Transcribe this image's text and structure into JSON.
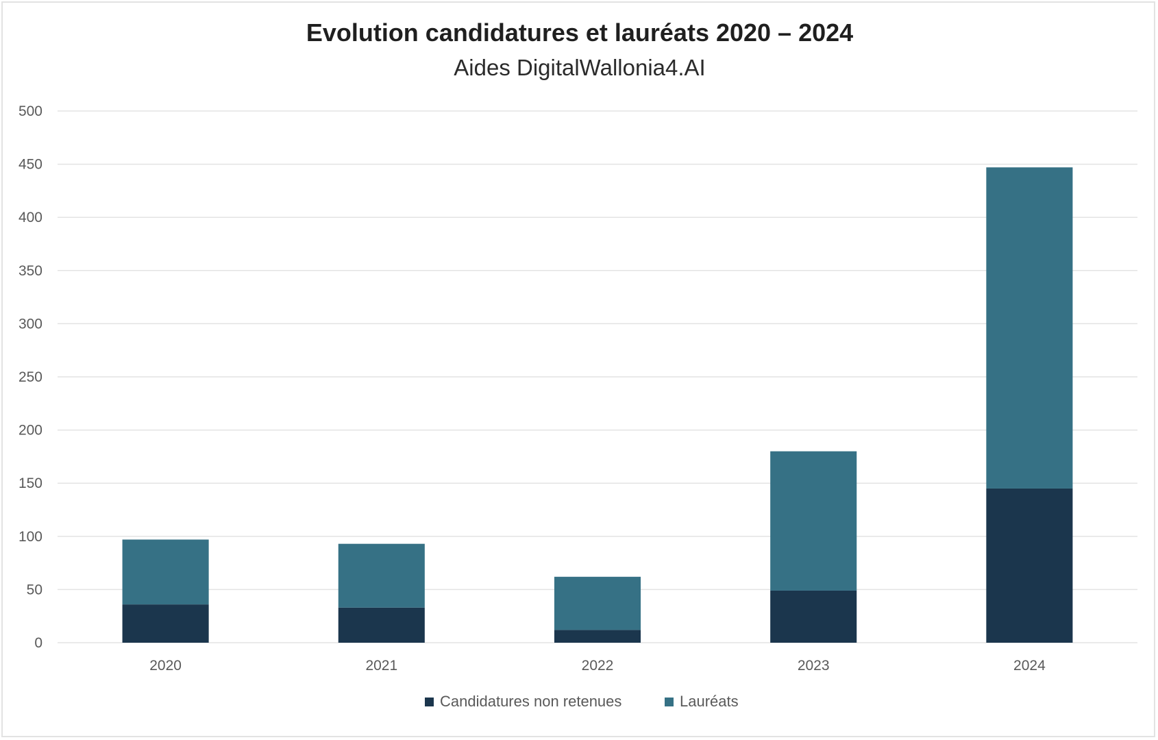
{
  "chart_data": {
    "type": "bar",
    "stacked": true,
    "title": "Evolution candidatures et lauréats 2020 – 2024",
    "subtitle": "Aides DigitalWallonia4.AI",
    "xlabel": "",
    "ylabel": "",
    "ylim": [
      0,
      500
    ],
    "yticks": [
      "0",
      "50",
      "100",
      "150",
      "200",
      "250",
      "300",
      "350",
      "400",
      "450",
      "500"
    ],
    "categories": [
      "2020",
      "2021",
      "2022",
      "2023",
      "2024"
    ],
    "series": [
      {
        "name": "Candidatures non retenues",
        "color": "#1b364d",
        "values": [
          36,
          33,
          12,
          49,
          145
        ]
      },
      {
        "name": "Lauréats",
        "color": "#367185",
        "values": [
          61,
          60,
          50,
          131,
          302
        ]
      }
    ],
    "grid": true,
    "legend": "bottom"
  }
}
